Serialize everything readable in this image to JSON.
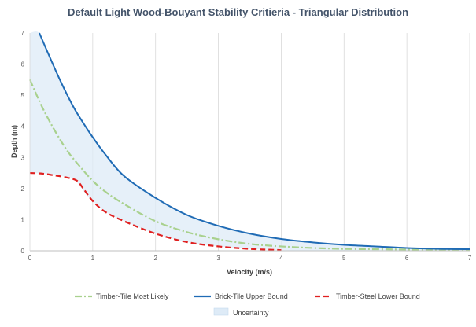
{
  "chart_data": {
    "type": "line",
    "title": "Default Light Wood-Bouyant Stability Critieria - Triangular Distribution",
    "xlabel": "Velocity (m/s)",
    "ylabel": "Depth (m)",
    "xlim": [
      0,
      7
    ],
    "ylim": [
      0,
      7
    ],
    "xticks": [
      "0",
      "1",
      "2",
      "3",
      "4",
      "5",
      "6",
      "7"
    ],
    "yticks": [
      "0",
      "1",
      "2",
      "3",
      "4",
      "5",
      "6",
      "7"
    ],
    "grid": "vertical",
    "legend_position": "bottom",
    "series": [
      {
        "name": "Timber-Tile Most Likely",
        "color": "#a9d18e",
        "style": "dash-dot",
        "x": [
          0,
          0.2,
          0.4,
          0.6,
          0.8,
          1.0,
          1.2,
          1.5,
          2.0,
          2.5,
          3.0,
          3.5,
          4.0,
          4.5,
          5.0,
          5.5,
          6.0,
          6.5,
          7.0
        ],
        "y": [
          5.5,
          4.6,
          3.85,
          3.2,
          2.7,
          2.25,
          1.9,
          1.5,
          0.95,
          0.6,
          0.37,
          0.22,
          0.14,
          0.09,
          0.06,
          0.05,
          0.04,
          0.03,
          0.02
        ]
      },
      {
        "name": "Brick-Tile Upper Bound",
        "color": "#1f6bb5",
        "style": "solid",
        "x": [
          0.15,
          0.3,
          0.5,
          0.7,
          0.9,
          1.0,
          1.2,
          1.5,
          2.0,
          2.5,
          3.0,
          3.5,
          4.0,
          4.5,
          5.0,
          5.5,
          6.0,
          6.5,
          7.0
        ],
        "y": [
          7.0,
          6.3,
          5.4,
          4.6,
          3.95,
          3.65,
          3.1,
          2.4,
          1.7,
          1.15,
          0.8,
          0.55,
          0.38,
          0.27,
          0.19,
          0.14,
          0.09,
          0.06,
          0.05
        ]
      },
      {
        "name": "Timber-Steel Lower Bound",
        "color": "#e02020",
        "style": "dashed",
        "x": [
          0,
          0.2,
          0.4,
          0.6,
          0.75,
          0.85,
          1.0,
          1.2,
          1.5,
          2.0,
          2.5,
          3.0,
          3.5,
          4.0
        ],
        "y": [
          2.5,
          2.48,
          2.42,
          2.35,
          2.25,
          2.0,
          1.6,
          1.25,
          0.95,
          0.55,
          0.28,
          0.14,
          0.06,
          0.02
        ]
      }
    ],
    "band": {
      "name": "Uncertainty",
      "color": "#deebf7",
      "x": [
        0,
        0.15,
        0.3,
        0.5,
        0.7,
        0.9,
        1.0,
        1.2,
        1.5,
        2.0,
        2.5,
        3.0,
        3.5,
        4.0,
        4.5,
        5.0,
        5.5,
        6.0,
        6.5,
        7.0
      ],
      "upper": [
        7.0,
        7.0,
        6.3,
        5.4,
        4.6,
        3.95,
        3.65,
        3.1,
        2.4,
        1.7,
        1.15,
        0.8,
        0.55,
        0.38,
        0.27,
        0.19,
        0.14,
        0.09,
        0.06,
        0.05
      ],
      "lower": [
        2.5,
        2.49,
        2.46,
        2.4,
        2.3,
        1.8,
        1.6,
        1.25,
        0.95,
        0.55,
        0.28,
        0.14,
        0.06,
        0.02,
        0.01,
        0,
        0,
        0,
        0,
        0
      ]
    }
  }
}
